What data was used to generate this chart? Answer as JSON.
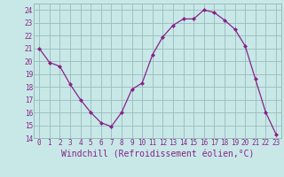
{
  "x": [
    0,
    1,
    2,
    3,
    4,
    5,
    6,
    7,
    8,
    9,
    10,
    11,
    12,
    13,
    14,
    15,
    16,
    17,
    18,
    19,
    20,
    21,
    22,
    23
  ],
  "y": [
    21.0,
    19.9,
    19.6,
    18.2,
    17.0,
    16.0,
    15.2,
    14.9,
    16.0,
    17.8,
    18.3,
    20.5,
    21.9,
    22.8,
    23.3,
    23.3,
    24.0,
    23.8,
    23.2,
    22.5,
    21.2,
    18.6,
    16.0,
    14.3
  ],
  "line_color": "#882288",
  "marker": "D",
  "marker_size": 2,
  "bg_color": "#c8e8e8",
  "grid_color": "#99bbbb",
  "xlabel": "Windchill (Refroidissement éolien,°C)",
  "xlabel_color": "#882288",
  "ylim": [
    14,
    24.5
  ],
  "yticks": [
    14,
    15,
    16,
    17,
    18,
    19,
    20,
    21,
    22,
    23,
    24
  ],
  "xticks": [
    0,
    1,
    2,
    3,
    4,
    5,
    6,
    7,
    8,
    9,
    10,
    11,
    12,
    13,
    14,
    15,
    16,
    17,
    18,
    19,
    20,
    21,
    22,
    23
  ],
  "tick_color": "#882288",
  "tick_fontsize": 5.5,
  "xlabel_fontsize": 7.0
}
